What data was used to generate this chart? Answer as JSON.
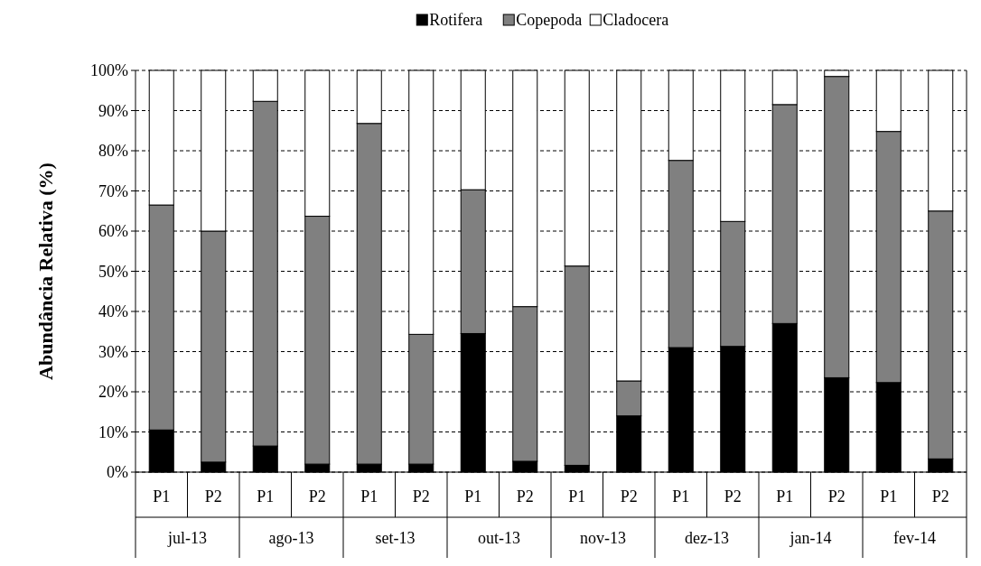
{
  "chart_data": {
    "type": "bar",
    "stacked": true,
    "ylabel": "Abundância Relativa (%)",
    "categories": [
      "P1",
      "P2",
      "P1",
      "P2",
      "P1",
      "P2",
      "P1",
      "P2",
      "P1",
      "P2",
      "P1",
      "P2",
      "P1",
      "P2",
      "P1",
      "P2"
    ],
    "annotations": [
      "jul-13",
      "ago-13",
      "set-13",
      "out-13",
      "nov-13",
      "dez-13",
      "jan-14",
      "fev-14"
    ],
    "series": [
      {
        "name": "Rotifera",
        "color": "#000000",
        "values": [
          10.5,
          2.5,
          6.5,
          2,
          2,
          2,
          34.5,
          2.7,
          1.7,
          14,
          31,
          31.3,
          37,
          23.5,
          22.3,
          3.3
        ]
      },
      {
        "name": "Copepoda",
        "color": "#808080",
        "values": [
          56,
          57.5,
          85.8,
          61.7,
          84.8,
          32.3,
          35.8,
          38.5,
          49.6,
          8.7,
          46.6,
          31.1,
          54.5,
          75,
          62.5,
          61.7
        ]
      },
      {
        "name": "Cladocera",
        "color": "#ffffff",
        "values": [
          33.5,
          40,
          7.7,
          36.3,
          13.2,
          65.7,
          29.7,
          58.8,
          48.7,
          77.3,
          22.4,
          37.6,
          8.5,
          1.5,
          15.2,
          35
        ]
      }
    ],
    "ylim": [
      0,
      100
    ],
    "yticks": [
      {
        "value": 0,
        "label": "0%"
      },
      {
        "value": 10,
        "label": "10%"
      },
      {
        "value": 20,
        "label": "20%"
      },
      {
        "value": 30,
        "label": "30%"
      },
      {
        "value": 40,
        "label": "40%"
      },
      {
        "value": 50,
        "label": "50%"
      },
      {
        "value": 60,
        "label": "60%"
      },
      {
        "value": 70,
        "label": "70%"
      },
      {
        "value": 80,
        "label": "80%"
      },
      {
        "value": 90,
        "label": "90%"
      },
      {
        "value": 100,
        "label": "100%"
      }
    ],
    "grid": "y",
    "legend": "top"
  }
}
